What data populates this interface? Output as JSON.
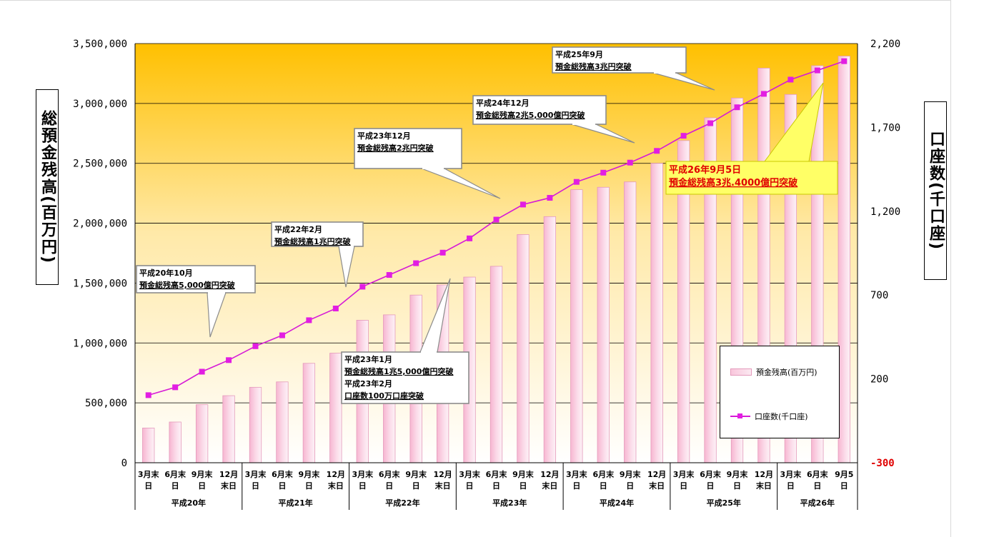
{
  "chart_data": {
    "type": "bar",
    "title": "",
    "y_axis_left": {
      "label": "総預金残高(百万円)",
      "range": [
        0,
        3500000
      ],
      "ticks": [
        "0",
        "500,000",
        "1,000,000",
        "1,500,000",
        "2,000,000",
        "2,500,000",
        "3,000,000",
        "3,500,000"
      ]
    },
    "y_axis_right": {
      "label": "口座数(千口座)",
      "range": [
        -300,
        2200
      ],
      "ticks": [
        "-300",
        "200",
        "700",
        "1,200",
        "1,700",
        "2,200"
      ]
    },
    "categories": [
      "3月末日",
      "6月末日",
      "9月末日",
      "12月末日",
      "3月末日",
      "6月末日",
      "9月末日",
      "12月末日",
      "3月末日",
      "6月末日",
      "9月末日",
      "12月末日",
      "3月末日",
      "6月末日",
      "9月末日",
      "12月末日",
      "3月末日",
      "6月末日",
      "9月末日",
      "12月末日",
      "3月末日",
      "6月末日",
      "9月末日",
      "12月末日",
      "3月末日",
      "6月末日",
      "9月5日"
    ],
    "category_lines": [
      [
        "3月末",
        "日"
      ],
      [
        "6月末",
        "日"
      ],
      [
        "9月末",
        "日"
      ],
      [
        "12月",
        "末日"
      ],
      [
        "3月末",
        "日"
      ],
      [
        "6月末",
        "日"
      ],
      [
        "9月末",
        "日"
      ],
      [
        "12月",
        "末日"
      ],
      [
        "3月末",
        "日"
      ],
      [
        "6月末",
        "日"
      ],
      [
        "9月末",
        "日"
      ],
      [
        "12月",
        "末日"
      ],
      [
        "3月末",
        "日"
      ],
      [
        "6月末",
        "日"
      ],
      [
        "9月末",
        "日"
      ],
      [
        "12月",
        "末日"
      ],
      [
        "3月末",
        "日"
      ],
      [
        "6月末",
        "日"
      ],
      [
        "9月末",
        "日"
      ],
      [
        "12月",
        "末日"
      ],
      [
        "3月末",
        "日"
      ],
      [
        "6月末",
        "日"
      ],
      [
        "9月末",
        "日"
      ],
      [
        "12月",
        "末日"
      ],
      [
        "3月末",
        "日"
      ],
      [
        "6月末",
        "日"
      ],
      [
        "9月5",
        "日"
      ]
    ],
    "groups": [
      {
        "label": "平成20年",
        "count": 4
      },
      {
        "label": "平成21年",
        "count": 4
      },
      {
        "label": "平成22年",
        "count": 4
      },
      {
        "label": "平成23年",
        "count": 4
      },
      {
        "label": "平成24年",
        "count": 4
      },
      {
        "label": "平成25年",
        "count": 4
      },
      {
        "label": "平成26年",
        "count": 3
      }
    ],
    "series": [
      {
        "name": "預金残高(百万円)",
        "type": "bar",
        "axis": "left",
        "values": [
          290000,
          340000,
          485000,
          560000,
          630000,
          675000,
          830000,
          915000,
          1190000,
          1235000,
          1400000,
          1485000,
          1550000,
          1640000,
          1905000,
          2055000,
          2280000,
          2300000,
          2345000,
          2500000,
          2690000,
          2880000,
          3045000,
          3295000,
          3075000,
          3315000,
          3395000
        ]
      },
      {
        "name": "口座数(千口座)",
        "type": "line",
        "axis": "right",
        "values": [
          103,
          150,
          243,
          312,
          395,
          460,
          550,
          620,
          750,
          820,
          890,
          953,
          1038,
          1150,
          1240,
          1280,
          1375,
          1430,
          1490,
          1560,
          1650,
          1725,
          1820,
          1900,
          1985,
          2040,
          2095
        ]
      }
    ],
    "annotations": [
      {
        "lines": [
          "平成20年10月",
          "預金総残高5,000億円突破"
        ]
      },
      {
        "lines": [
          "平成22年2月",
          "預金総残高1兆円突破"
        ]
      },
      {
        "lines": [
          "平成23年1月",
          "預金総残高1兆5,000億円突破",
          "平成23年2月",
          "口座数100万口座突破"
        ]
      },
      {
        "lines": [
          "平成23年12月",
          "預金総残高2兆円突破"
        ]
      },
      {
        "lines": [
          "平成24年12月",
          "預金総残高2兆5,000億円突破"
        ]
      },
      {
        "lines": [
          "平成25年9月",
          "預金総残高3兆円突破"
        ]
      },
      {
        "lines": [
          "平成26年9月5日",
          "預金総残高3兆.4000億円突破"
        ],
        "highlight": true
      }
    ],
    "grid": true,
    "legend_position": "right"
  },
  "colors": {
    "plot_top": "#ffc000",
    "plot_bottom": "#ffffff",
    "bar_fill": "#f9c6dc",
    "bar_edge": "#e49abb",
    "line": "#d61ad6",
    "marker": "#e21ee2",
    "highlight_fill": "#ffff66",
    "highlight_text": "#e00000",
    "right_negative_tick": "#e00000"
  }
}
